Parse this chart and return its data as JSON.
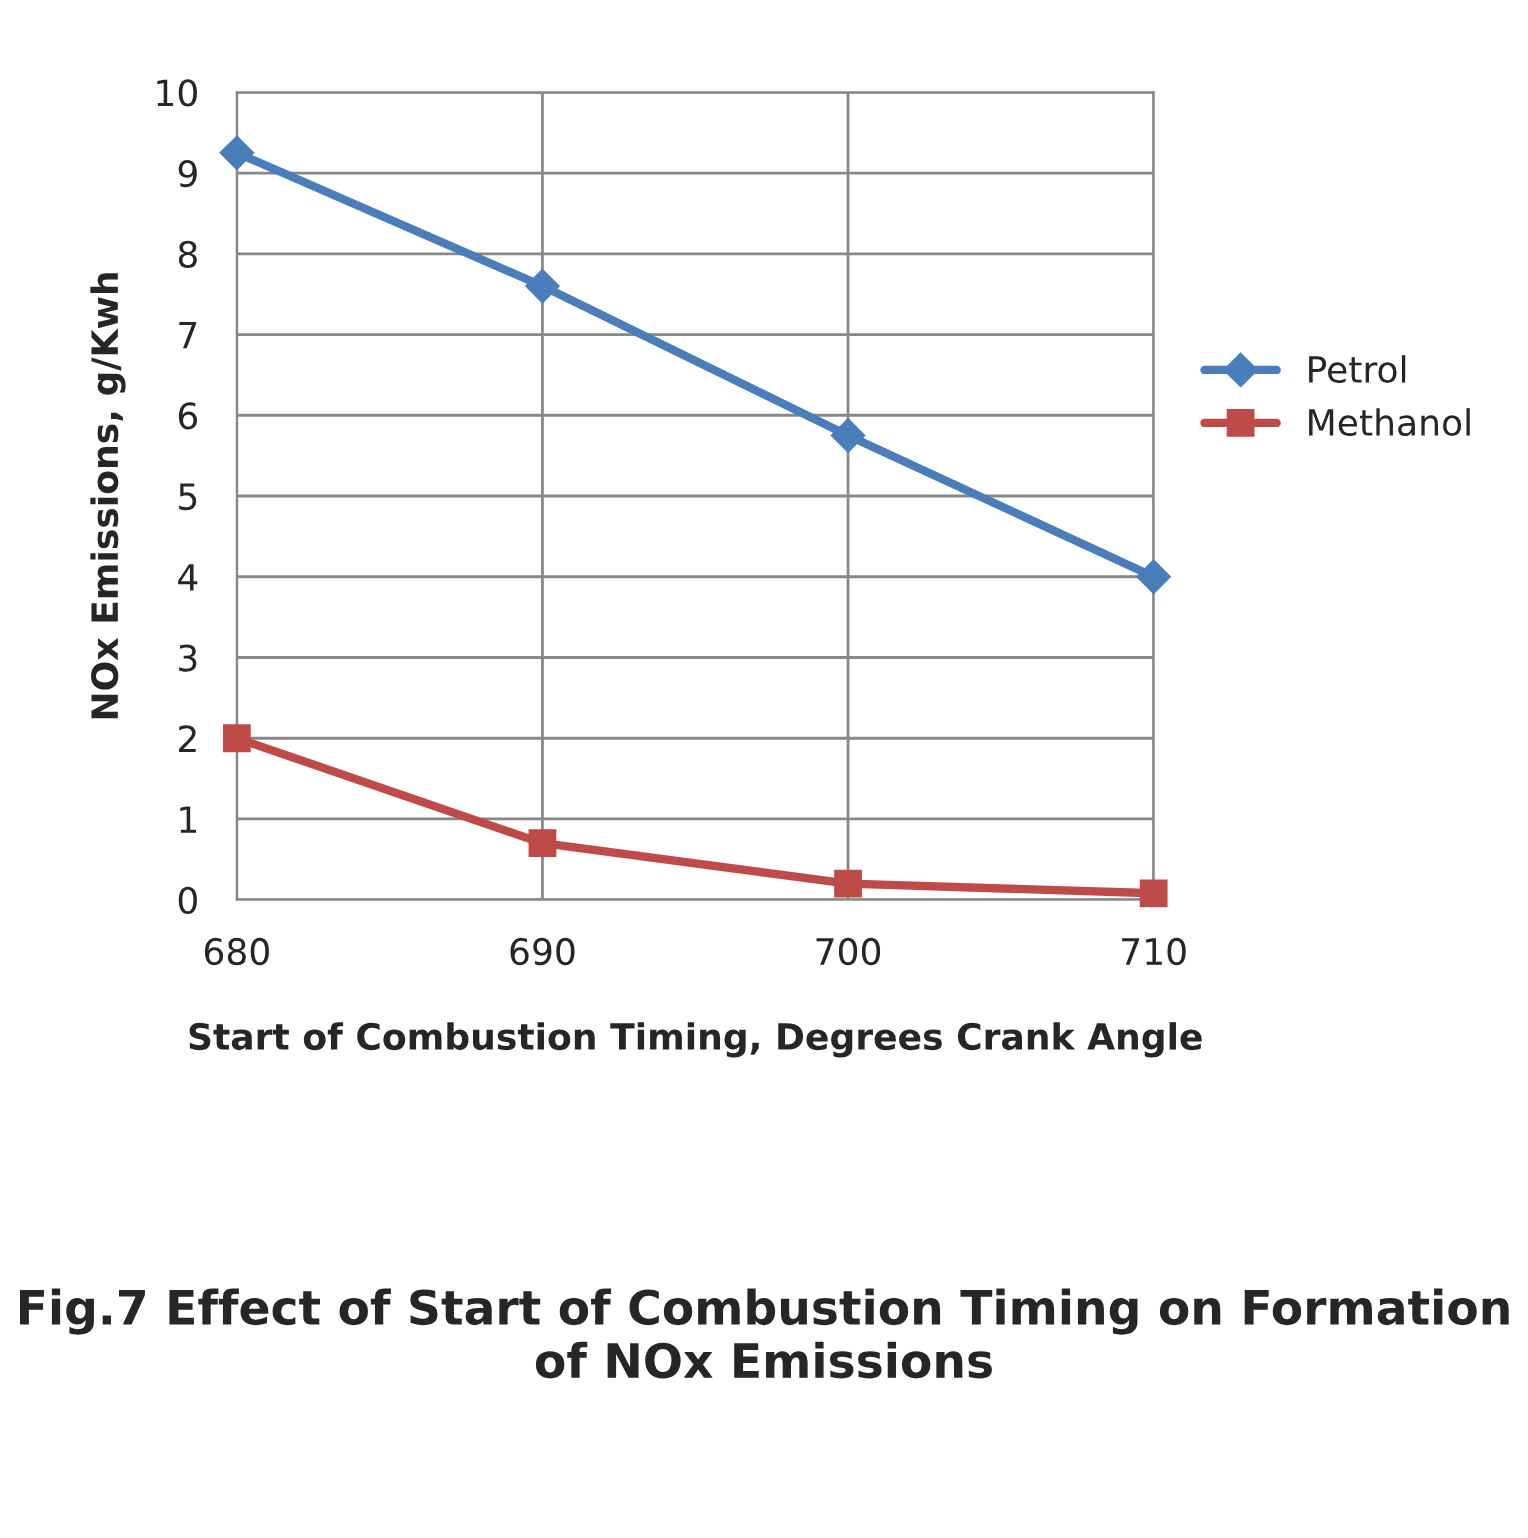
{
  "chart_data": {
    "type": "line",
    "xlabel": "Start of Combustion Timing, Degrees Crank Angle",
    "ylabel": "NOx Emissions, g/Kwh",
    "x": [
      680,
      690,
      700,
      710
    ],
    "series": [
      {
        "name": "Petrol",
        "color": "#4a7ebb",
        "marker": "diamond",
        "values": [
          9.25,
          7.6,
          5.75,
          4.0
        ]
      },
      {
        "name": "Methanol",
        "color": "#be4b48",
        "marker": "square",
        "values": [
          2.0,
          0.7,
          0.2,
          0.08
        ]
      }
    ],
    "xlim": [
      680,
      710
    ],
    "xticks": [
      680,
      690,
      700,
      710
    ],
    "ylim": [
      0,
      10
    ],
    "yticks": [
      0,
      1,
      2,
      3,
      4,
      5,
      6,
      7,
      8,
      9,
      10
    ],
    "grid": true,
    "legend": "right",
    "line_style": "solid",
    "annotations": [
      "Fig.7 Effect of Start of Combustion Timing on Formation of NOx Emissions"
    ]
  }
}
